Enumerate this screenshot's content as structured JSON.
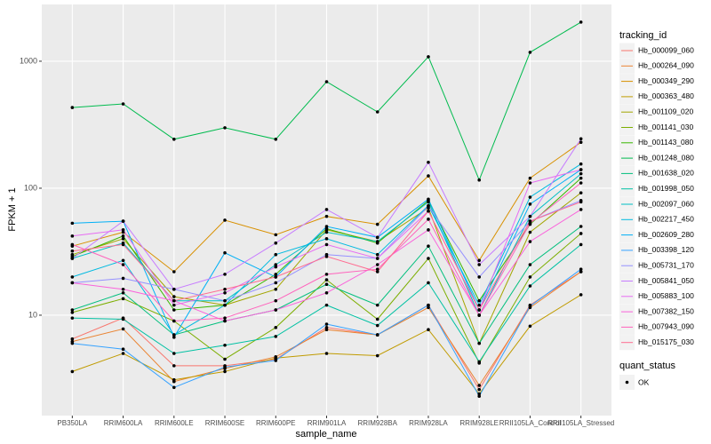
{
  "chart_data": {
    "type": "line",
    "x_label": "sample_name",
    "y_label": "FPKM + 1",
    "yscale": "log",
    "grid": true,
    "categories": [
      "PB350LA",
      "RRIM600LA",
      "RRIM600LE",
      "RRIM600SE",
      "RRIM600PE",
      "RRIM901LA",
      "RRIM928BA",
      "RRIM928LA",
      "RRIM928LE",
      "RRII105LA_Control",
      "RRII105LA_Stressed"
    ],
    "ylim": [
      1.62,
      2800
    ],
    "yticks": [
      10,
      100,
      1000
    ],
    "legend_title": "tracking_id",
    "point_legend_title": "quant_status",
    "point_legend_label": "OK",
    "point_color": "#000000",
    "series": [
      {
        "name": "Hb_000099_060",
        "color": "#F8766D",
        "values": [
          6.5,
          9.5,
          4,
          4,
          4.5,
          8,
          7,
          12,
          2.6,
          12,
          22
        ]
      },
      {
        "name": "Hb_000264_090",
        "color": "#EA8331",
        "values": [
          6.2,
          7.8,
          3,
          3.8,
          4.7,
          7.7,
          7,
          11.5,
          2.8,
          11.5,
          22
        ]
      },
      {
        "name": "Hb_000349_290",
        "color": "#D89000",
        "values": [
          35,
          45,
          22,
          56,
          43,
          60,
          52,
          125,
          27,
          120,
          230
        ]
      },
      {
        "name": "Hb_000363_480",
        "color": "#C09B00",
        "values": [
          3.6,
          5,
          3.1,
          3.6,
          4.6,
          5,
          4.8,
          7.7,
          2.4,
          8.2,
          14.5
        ]
      },
      {
        "name": "Hb_001109_020",
        "color": "#A3A500",
        "values": [
          30,
          40,
          14,
          12,
          16,
          47,
          38,
          70,
          6,
          45,
          92
        ]
      },
      {
        "name": "Hb_001141_030",
        "color": "#7CAE00",
        "values": [
          10.5,
          13.5,
          9,
          4.5,
          8,
          19,
          9.3,
          28,
          4.2,
          20,
          44
        ]
      },
      {
        "name": "Hb_001143_080",
        "color": "#39B600",
        "values": [
          29,
          42,
          11,
          12,
          21,
          48,
          37,
          80,
          13,
          52,
          120
        ]
      },
      {
        "name": "Hb_001248_080",
        "color": "#00BB4E",
        "values": [
          432,
          461,
          243,
          299,
          243,
          690,
          399,
          1084,
          116,
          1175,
          2033
        ]
      },
      {
        "name": "Hb_001638_020",
        "color": "#00BF7D",
        "values": [
          11,
          15,
          7,
          9,
          11,
          17.5,
          12,
          35,
          6,
          25,
          50
        ]
      },
      {
        "name": "Hb_001998_050",
        "color": "#00C1A3",
        "values": [
          9.5,
          9.3,
          5,
          5.8,
          6.8,
          12,
          8.3,
          18,
          4.3,
          17,
          36
        ]
      },
      {
        "name": "Hb_002097_060",
        "color": "#00BFC4",
        "values": [
          28,
          37,
          13,
          13,
          25,
          45,
          38,
          78,
          10,
          60,
          130
        ]
      },
      {
        "name": "Hb_002217_450",
        "color": "#00BAE0",
        "values": [
          20,
          27,
          7,
          12,
          30,
          40,
          30,
          73,
          12,
          85,
          155
        ]
      },
      {
        "name": "Hb_002609_280",
        "color": "#00B0F6",
        "values": [
          53,
          55,
          6.7,
          31,
          20,
          50,
          41,
          82,
          11,
          75,
          140
        ]
      },
      {
        "name": "Hb_003398_120",
        "color": "#35A2FF",
        "values": [
          6,
          5.4,
          2.7,
          3.9,
          4.4,
          8.5,
          7,
          12,
          2.3,
          11.8,
          23
        ]
      },
      {
        "name": "Hb_005731_170",
        "color": "#9590FF",
        "values": [
          18,
          19.5,
          16,
          13,
          18,
          30,
          28,
          72,
          20,
          55,
          80
        ]
      },
      {
        "name": "Hb_005841_050",
        "color": "#C77CFF",
        "values": [
          28,
          55,
          16,
          21,
          37,
          68,
          41,
          160,
          25,
          60,
          245
        ]
      },
      {
        "name": "Hb_005883_100",
        "color": "#E76BF3",
        "values": [
          42,
          47,
          12,
          15,
          24,
          36,
          28,
          66,
          11,
          110,
          140
        ]
      },
      {
        "name": "Hb_007382_150",
        "color": "#FA62DB",
        "values": [
          18,
          16,
          13,
          9,
          11,
          15,
          25,
          47,
          10,
          38,
          68
        ]
      },
      {
        "name": "Hb_007943_090",
        "color": "#FF62BC",
        "values": [
          36,
          25,
          9,
          9.5,
          13,
          21,
          23,
          57,
          10,
          53,
          110
        ]
      },
      {
        "name": "Hb_015175_030",
        "color": "#FF6C91",
        "values": [
          32,
          36,
          13,
          16,
          20,
          29,
          22,
          66,
          11,
          55,
          78
        ]
      }
    ]
  }
}
